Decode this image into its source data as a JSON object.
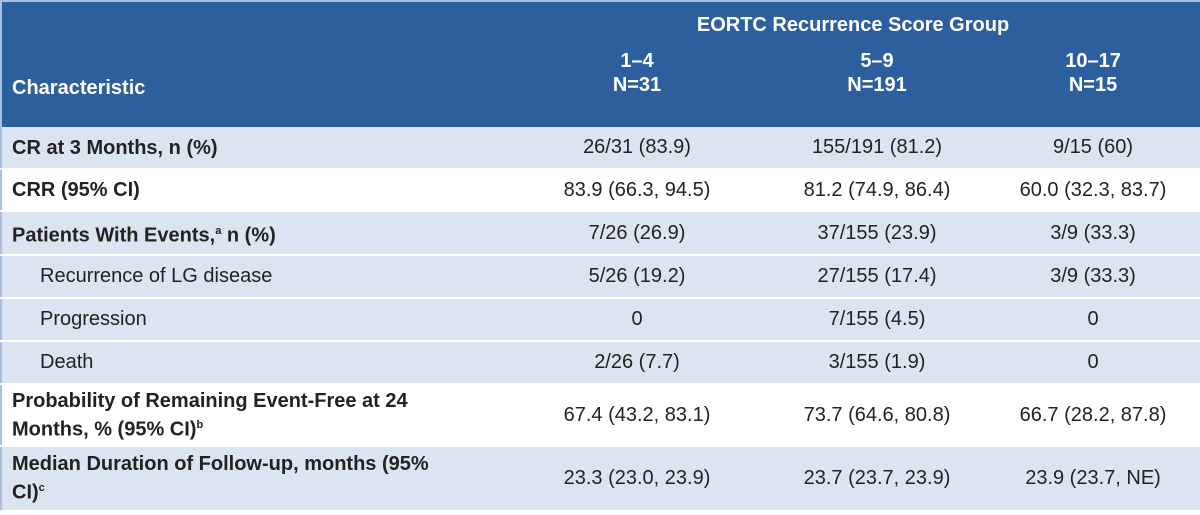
{
  "header": {
    "group_title": "EORTC Recurrence Score Group",
    "characteristic": "Characteristic",
    "columns": [
      {
        "range": "1–4",
        "n": "N=31"
      },
      {
        "range": "5–9",
        "n": "N=191"
      },
      {
        "range": "10–17",
        "n": "N=15"
      }
    ]
  },
  "table": {
    "rows": [
      {
        "label": [
          {
            "text": "CR at 3 Months, n (%)"
          }
        ],
        "cells": [
          "26/31 (83.9)",
          "155/191 (81.2)",
          "9/15 (60)"
        ]
      },
      {
        "label": [
          {
            "text": "CRR (95% CI)"
          }
        ],
        "cells": [
          "83.9 (66.3, 94.5)",
          "81.2 (74.9, 86.4)",
          "60.0 (32.3, 83.7)"
        ]
      },
      {
        "label": [
          {
            "text": "Patients With Events,"
          },
          {
            "sup": "a"
          },
          {
            "text": " n (%)"
          }
        ],
        "cells": [
          "7/26 (26.9)",
          "37/155 (23.9)",
          "3/9 (33.3)"
        ],
        "subrows": [
          {
            "label": "Recurrence of LG disease",
            "cells": [
              "5/26 (19.2)",
              "27/155 (17.4)",
              "3/9 (33.3)"
            ]
          },
          {
            "label": "Progression",
            "cells": [
              "0",
              "7/155 (4.5)",
              "0"
            ]
          },
          {
            "label": "Death",
            "cells": [
              "2/26 (7.7)",
              "3/155 (1.9)",
              "0"
            ]
          }
        ]
      },
      {
        "label": [
          {
            "text": "Probability of Remaining Event-Free at 24 Months, % (95% CI)"
          },
          {
            "sup": "b"
          }
        ],
        "cells": [
          "67.4 (43.2, 83.1)",
          "73.7 (64.6, 80.8)",
          "66.7 (28.2, 87.8)"
        ]
      },
      {
        "label": [
          {
            "text": "Median Duration of Follow-up, months (95% CI)"
          },
          {
            "sup": "c"
          }
        ],
        "cells": [
          "23.3 (23.0, 23.9)",
          "23.7 (23.7, 23.9)",
          "23.9 (23.7, NE)"
        ]
      }
    ]
  }
}
